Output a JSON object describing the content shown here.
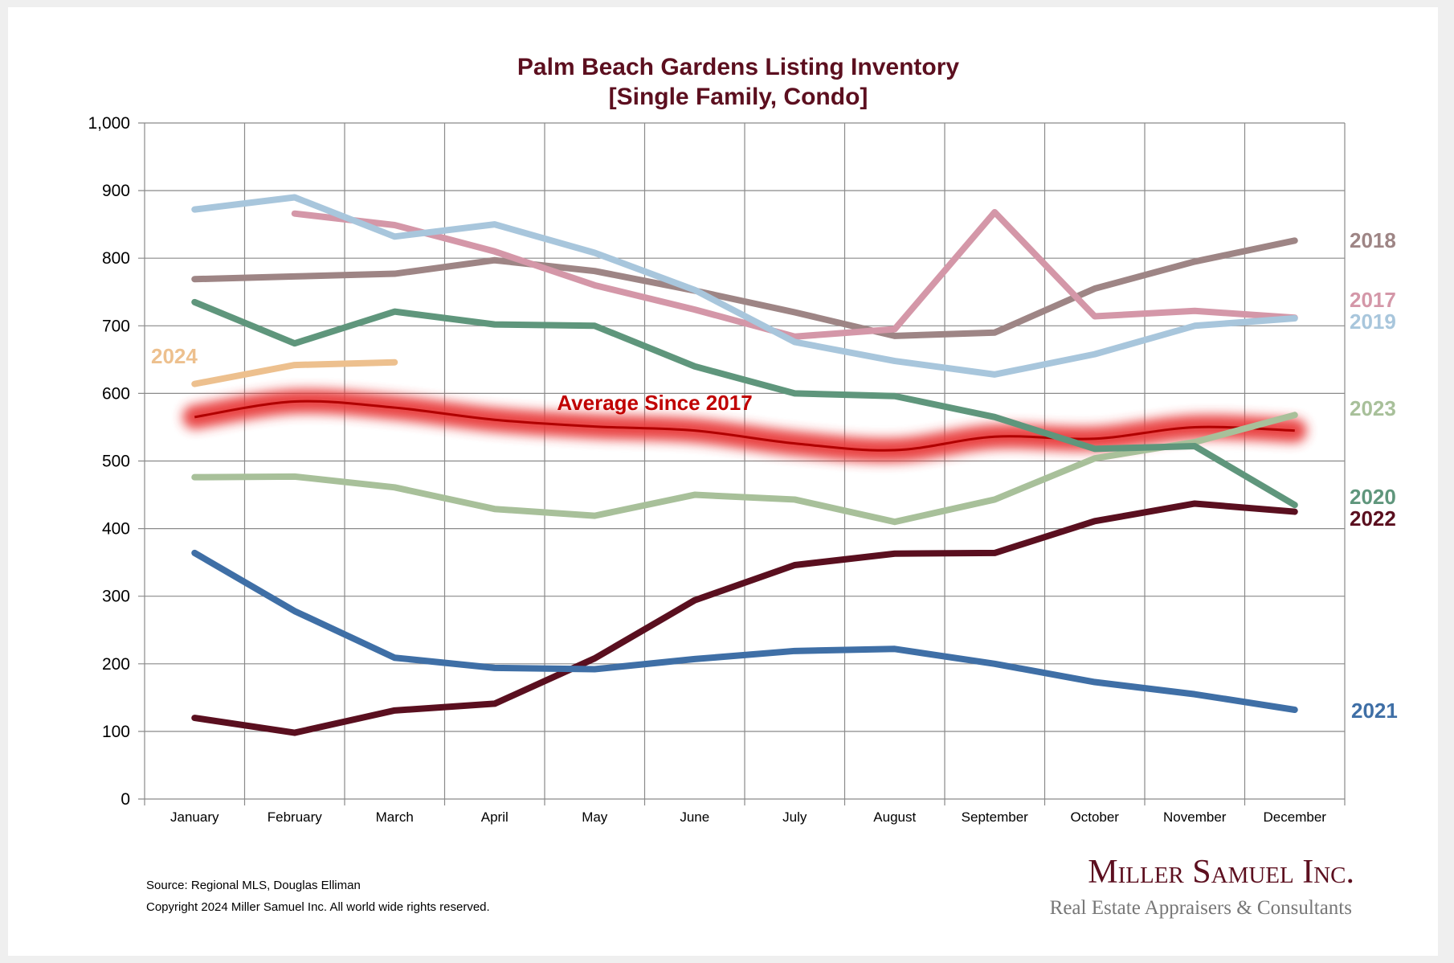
{
  "chart_data": {
    "type": "line",
    "title": "Palm Beach Gardens Listing Inventory",
    "subtitle": "[Single Family, Condo]",
    "xlabel": "",
    "ylabel": "",
    "ylim": [
      0,
      1000
    ],
    "yticks": [
      "0",
      "100",
      "200",
      "300",
      "400",
      "500",
      "600",
      "700",
      "800",
      "900",
      "1,000"
    ],
    "grid": true,
    "categories": [
      "January",
      "February",
      "March",
      "April",
      "May",
      "June",
      "July",
      "August",
      "September",
      "October",
      "November",
      "December"
    ],
    "series": [
      {
        "name": "2018",
        "color": "#9e8585",
        "values": [
          769,
          773,
          777,
          797,
          781,
          752,
          720,
          685,
          690,
          755,
          795,
          826
        ]
      },
      {
        "name": "2017",
        "color": "#d497a8",
        "values": [
          null,
          866,
          849,
          810,
          760,
          724,
          684,
          695,
          868,
          714,
          722,
          712
        ]
      },
      {
        "name": "2019",
        "color": "#a8c6dc",
        "values": [
          872,
          890,
          832,
          850,
          808,
          753,
          676,
          648,
          628,
          658,
          700,
          711
        ]
      },
      {
        "name": "2023",
        "color": "#a8c09a",
        "values": [
          476,
          477,
          461,
          429,
          419,
          450,
          443,
          410,
          443,
          504,
          528,
          568
        ]
      },
      {
        "name": "2020",
        "color": "#5f967c",
        "values": [
          735,
          674,
          721,
          702,
          700,
          640,
          600,
          596,
          565,
          518,
          522,
          435
        ]
      },
      {
        "name": "2022",
        "color": "#5a0f1f",
        "values": [
          120,
          98,
          131,
          141,
          208,
          294,
          346,
          363,
          364,
          411,
          437,
          425
        ]
      },
      {
        "name": "2021",
        "color": "#3f6fa6",
        "values": [
          364,
          278,
          209,
          194,
          192,
          207,
          219,
          222,
          200,
          173,
          155,
          132
        ]
      },
      {
        "name": "2024",
        "color": "#edc08e",
        "values": [
          614,
          642,
          646,
          null,
          null,
          null,
          null,
          null,
          null,
          null,
          null,
          null
        ]
      }
    ],
    "average": {
      "name": "Average  Since 2017",
      "color": "#b00000",
      "glow": "#e83a3a",
      "values": [
        565,
        588,
        579,
        561,
        551,
        545,
        526,
        516,
        536,
        533,
        550,
        545
      ]
    }
  },
  "footer": {
    "source": "Source: Regional MLS, Douglas Elliman",
    "copyright": "Copyright 2024 Miller Samuel Inc.  All world wide rights reserved."
  },
  "logo": {
    "name": "Miller Samuel Inc.",
    "tagline": "Real Estate Appraisers & Consultants"
  }
}
